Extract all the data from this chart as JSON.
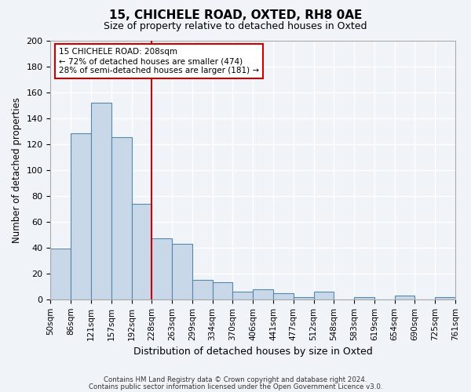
{
  "title": "15, CHICHELE ROAD, OXTED, RH8 0AE",
  "subtitle": "Size of property relative to detached houses in Oxted",
  "xlabel": "Distribution of detached houses by size in Oxted",
  "ylabel": "Number of detached properties",
  "bin_labels": [
    "50sqm",
    "86sqm",
    "121sqm",
    "157sqm",
    "192sqm",
    "228sqm",
    "263sqm",
    "299sqm",
    "334sqm",
    "370sqm",
    "406sqm",
    "441sqm",
    "477sqm",
    "512sqm",
    "548sqm",
    "583sqm",
    "619sqm",
    "654sqm",
    "690sqm",
    "725sqm",
    "761sqm"
  ],
  "bar_heights": [
    39,
    128,
    152,
    125,
    74,
    47,
    43,
    15,
    13,
    6,
    8,
    5,
    2,
    6,
    0,
    2,
    0,
    3,
    0,
    2
  ],
  "bar_color": "#c8d8e8",
  "bar_edge_color": "#5588aa",
  "vline_x": 4.5,
  "vline_color": "#cc0000",
  "ylim": [
    0,
    200
  ],
  "yticks": [
    0,
    20,
    40,
    60,
    80,
    100,
    120,
    140,
    160,
    180,
    200
  ],
  "annotation_title": "15 CHICHELE ROAD: 208sqm",
  "annotation_line1": "← 72% of detached houses are smaller (474)",
  "annotation_line2": "28% of semi-detached houses are larger (181) →",
  "annotation_box_color": "#ffffff",
  "annotation_box_edge": "#cc0000",
  "footer1": "Contains HM Land Registry data © Crown copyright and database right 2024.",
  "footer2": "Contains public sector information licensed under the Open Government Licence v3.0.",
  "background_color": "#f0f4f8",
  "grid_color": "#ffffff"
}
